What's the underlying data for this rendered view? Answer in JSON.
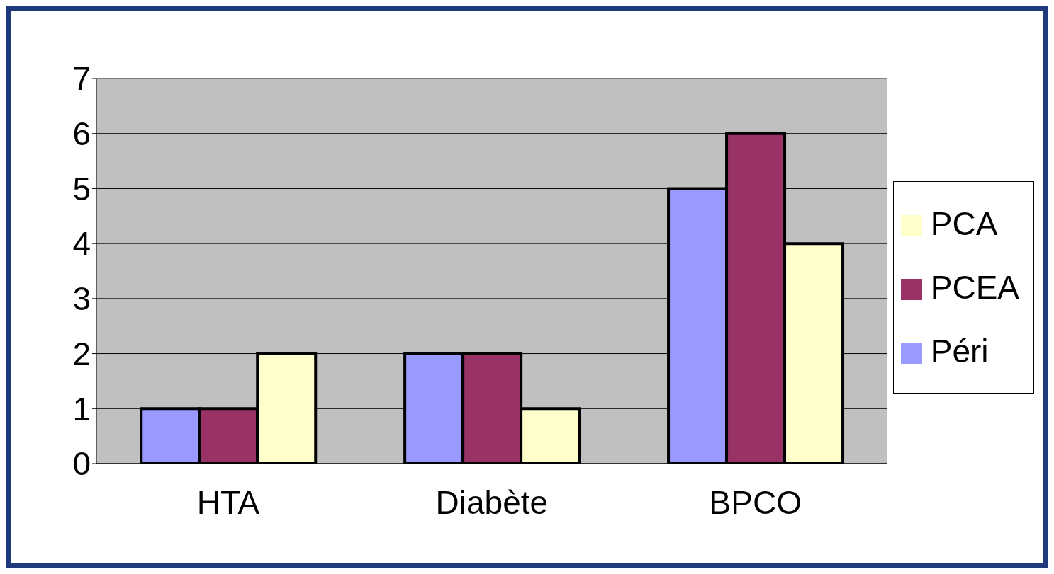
{
  "chart_data": {
    "type": "bar",
    "categories": [
      "HTA",
      "Diabète",
      "BPCO"
    ],
    "series": [
      {
        "name": "Péri",
        "color": "#9999ff",
        "values": [
          1,
          2,
          5
        ]
      },
      {
        "name": "PCEA",
        "color": "#993366",
        "values": [
          1,
          2,
          6
        ]
      },
      {
        "name": "PCA",
        "color": "#ffffcc",
        "values": [
          2,
          1,
          4
        ]
      }
    ],
    "ylim": [
      0,
      7
    ],
    "yticks": [
      0,
      1,
      2,
      3,
      4,
      5,
      6,
      7
    ],
    "grid": "y",
    "legend": "right"
  }
}
